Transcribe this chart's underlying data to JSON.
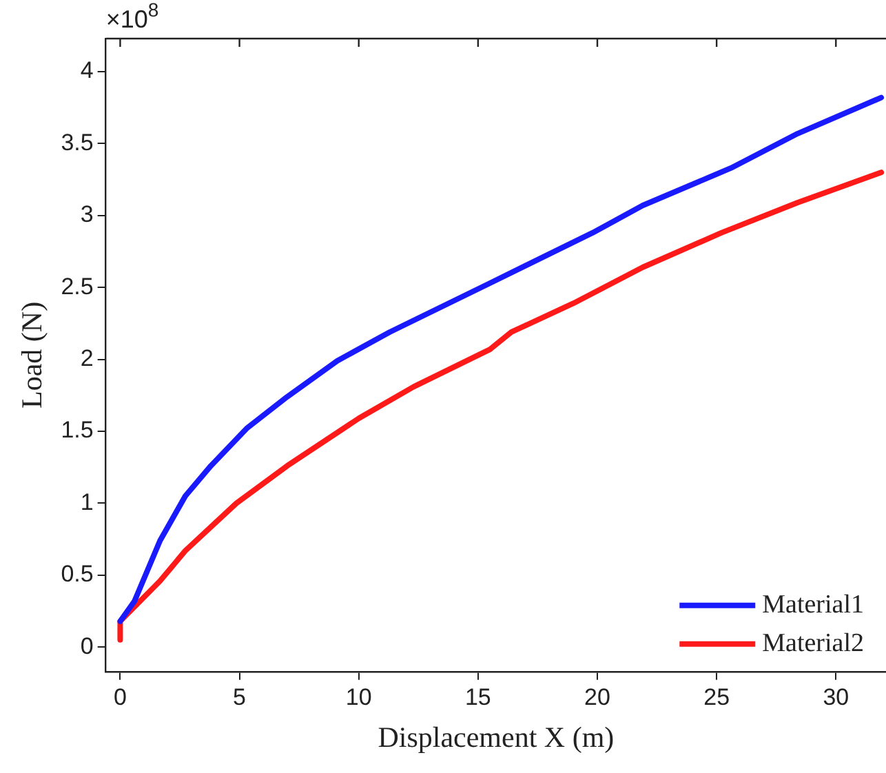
{
  "chart_data": {
    "type": "line",
    "xlabel": "Displacement X (m)",
    "ylabel": "Load (N)",
    "annotations": [
      "×10$^{8}$"
    ],
    "xlim": [
      -0.6,
      32.1
    ],
    "xticks": [
      0,
      5,
      10,
      15,
      20,
      25,
      30
    ],
    "ylim": [
      -0.17,
      4.23
    ],
    "yticks": [
      0,
      0.5,
      1,
      1.5,
      2,
      2.5,
      3,
      3.5,
      4
    ],
    "grid": false,
    "legend": "bottom right",
    "marker": "none",
    "line_style": "solid",
    "series": [
      {
        "name": "Material1",
        "color": "#1a1aff",
        "x": [
          0,
          0.6,
          1.67,
          2.73,
          3.8,
          5.3,
          7.0,
          9.1,
          11.3,
          15.5,
          19.8,
          21.9,
          25.6,
          28.4,
          31.9
        ],
        "values": [
          0.18,
          0.32,
          0.74,
          1.05,
          1.26,
          1.52,
          1.74,
          1.99,
          2.19,
          2.53,
          2.88,
          3.07,
          3.33,
          3.57,
          3.82
        ]
      },
      {
        "name": "Material2",
        "color": "#ff1a1a",
        "x": [
          0,
          0,
          1.67,
          2.73,
          4.87,
          7.0,
          10.0,
          12.3,
          15.5,
          16.4,
          19.0,
          21.9,
          25.2,
          28.4,
          31.9
        ],
        "values": [
          0.05,
          0.18,
          0.46,
          0.67,
          1.0,
          1.26,
          1.59,
          1.81,
          2.07,
          2.19,
          2.39,
          2.64,
          2.88,
          3.09,
          3.3
        ]
      }
    ]
  }
}
